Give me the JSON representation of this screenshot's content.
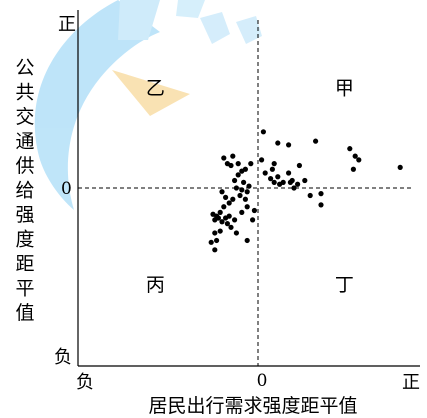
{
  "chart_data": {
    "type": "scatter",
    "title": "",
    "xlabel": "居民出行需求强度距平值",
    "ylabel": "公共交通供给强度距平值",
    "xlim": [
      -10,
      9
    ],
    "ylim": [
      -9.5,
      9.5
    ],
    "grid": false,
    "legend": "none",
    "x_tick_labels": {
      "neg": "负",
      "zero": "0",
      "pos": "正"
    },
    "y_tick_labels": {
      "pos": "正",
      "zero": "0",
      "neg": "负"
    },
    "quadrants": [
      {
        "label": "甲",
        "x": 4.8,
        "y": 5.0
      },
      {
        "label": "乙",
        "x": -5.7,
        "y": 5.0
      },
      {
        "label": "丙",
        "x": -5.7,
        "y": -5.5
      },
      {
        "label": "丁",
        "x": 4.8,
        "y": -5.5
      }
    ],
    "reference_lines": {
      "x0": 0,
      "y0": 0
    },
    "points": [
      {
        "x": 0.3,
        "y": 3.0
      },
      {
        "x": 3.2,
        "y": 2.5
      },
      {
        "x": 5.1,
        "y": 2.1
      },
      {
        "x": 5.4,
        "y": 1.7
      },
      {
        "x": 5.6,
        "y": 1.5
      },
      {
        "x": 5.3,
        "y": 1.0
      },
      {
        "x": 7.9,
        "y": 1.1
      },
      {
        "x": 1.1,
        "y": 2.4
      },
      {
        "x": 1.7,
        "y": 2.3
      },
      {
        "x": 2.3,
        "y": 1.2
      },
      {
        "x": 1.7,
        "y": 0.8
      },
      {
        "x": 1.9,
        "y": 0.4
      },
      {
        "x": 2.2,
        "y": 0.2
      },
      {
        "x": 2.6,
        "y": 0.4
      },
      {
        "x": 2.0,
        "y": 0.0
      },
      {
        "x": 1.8,
        "y": 0.3
      },
      {
        "x": 1.4,
        "y": 0.3
      },
      {
        "x": 1.2,
        "y": 0.2
      },
      {
        "x": 0.9,
        "y": 0.3
      },
      {
        "x": 0.7,
        "y": 0.5
      },
      {
        "x": 1.1,
        "y": 0.6
      },
      {
        "x": 0.8,
        "y": 1.0
      },
      {
        "x": 0.9,
        "y": 1.3
      },
      {
        "x": 0.2,
        "y": 1.5
      },
      {
        "x": 0.4,
        "y": 0.8
      },
      {
        "x": 2.9,
        "y": -0.4
      },
      {
        "x": 3.5,
        "y": -0.3
      },
      {
        "x": 3.5,
        "y": -0.9
      },
      {
        "x": -0.4,
        "y": 1.3
      },
      {
        "x": -0.7,
        "y": 1.0
      },
      {
        "x": -0.9,
        "y": 0.9
      },
      {
        "x": -1.1,
        "y": 1.3
      },
      {
        "x": -1.5,
        "y": 1.2
      },
      {
        "x": -1.7,
        "y": 1.3
      },
      {
        "x": -1.9,
        "y": 1.6
      },
      {
        "x": -1.4,
        "y": 1.7
      },
      {
        "x": -1.1,
        "y": 0.7
      },
      {
        "x": -0.8,
        "y": 0.3
      },
      {
        "x": -1.3,
        "y": 0.4
      },
      {
        "x": -0.5,
        "y": 0.1
      },
      {
        "x": -0.6,
        "y": -0.2
      },
      {
        "x": -0.9,
        "y": -0.1
      },
      {
        "x": -1.2,
        "y": 0.0
      },
      {
        "x": -1.0,
        "y": -0.4
      },
      {
        "x": -0.7,
        "y": -0.6
      },
      {
        "x": -0.6,
        "y": -1.0
      },
      {
        "x": -0.9,
        "y": -1.3
      },
      {
        "x": -1.4,
        "y": -0.6
      },
      {
        "x": -1.6,
        "y": -0.8
      },
      {
        "x": -1.8,
        "y": -0.5
      },
      {
        "x": -2.0,
        "y": -0.2
      },
      {
        "x": -1.9,
        "y": -1.0
      },
      {
        "x": -2.1,
        "y": -1.3
      },
      {
        "x": -1.6,
        "y": -1.5
      },
      {
        "x": -1.3,
        "y": -1.7
      },
      {
        "x": -2.0,
        "y": -1.8
      },
      {
        "x": -2.2,
        "y": -1.6
      },
      {
        "x": -2.5,
        "y": -1.4
      },
      {
        "x": -2.3,
        "y": -1.5
      },
      {
        "x": -1.8,
        "y": -1.6
      },
      {
        "x": -1.7,
        "y": -1.9
      },
      {
        "x": -2.4,
        "y": -1.7
      },
      {
        "x": -1.5,
        "y": -2.1
      },
      {
        "x": -2.4,
        "y": -2.4
      },
      {
        "x": -2.1,
        "y": -2.3
      },
      {
        "x": -1.2,
        "y": -2.4
      },
      {
        "x": -2.3,
        "y": -2.8
      },
      {
        "x": -2.6,
        "y": -2.9
      },
      {
        "x": -2.4,
        "y": -3.3
      },
      {
        "x": -0.6,
        "y": -2.8
      },
      {
        "x": -0.2,
        "y": -1.2
      },
      {
        "x": -0.3,
        "y": -1.7
      }
    ]
  },
  "colors": {
    "axis": "#000000",
    "point": "#000000",
    "watermark": "#3fb0ec",
    "watermark_accent": "#f5c45e"
  }
}
